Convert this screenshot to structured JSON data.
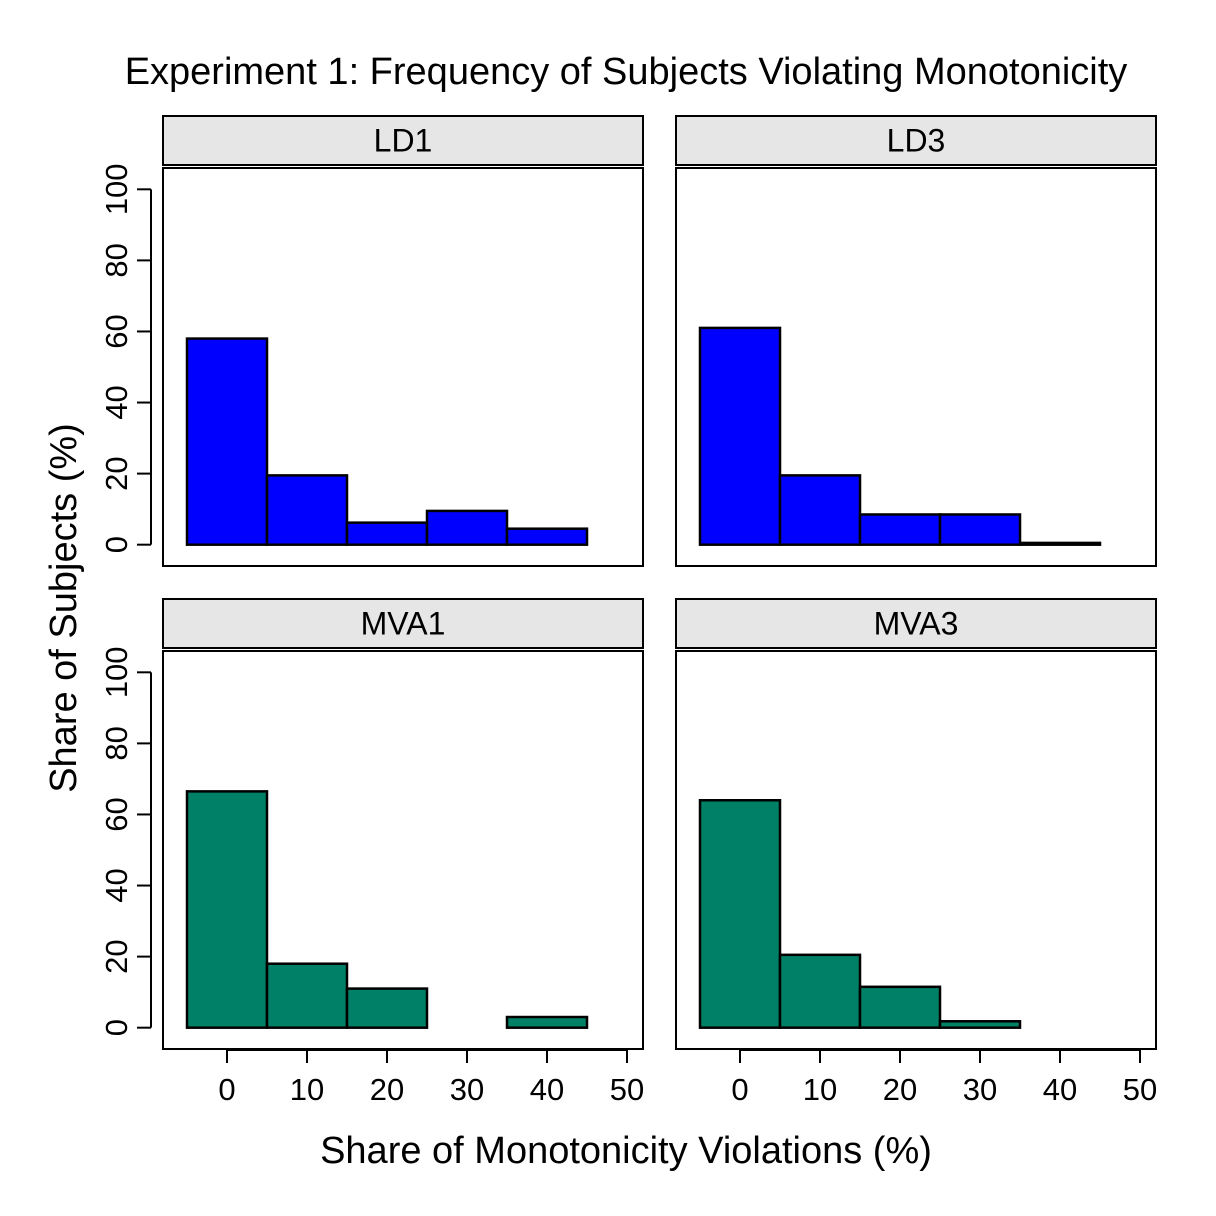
{
  "chart_data": {
    "type": "bar",
    "title": "Experiment 1: Frequency of Subjects Violating Monotonicity",
    "xlabel": "Share of Monotonicity Violations (%)",
    "ylabel": "Share of Subjects (%)",
    "xlim": [
      -8,
      52
    ],
    "ylim": [
      -6,
      106
    ],
    "xticks": [
      0,
      10,
      20,
      30,
      40,
      50
    ],
    "yticks": [
      0,
      20,
      40,
      60,
      80,
      100
    ],
    "bin_width": 10,
    "bin_centers": [
      0,
      10,
      20,
      30,
      40
    ],
    "colors": {
      "LD": "#0000ff",
      "MVA": "#008066",
      "strip": "#e6e6e6",
      "edge": "#000000"
    },
    "panels": [
      {
        "name": "LD1",
        "group": "LD",
        "values": [
          58,
          19.5,
          6.2,
          9.5,
          4.5
        ]
      },
      {
        "name": "LD3",
        "group": "LD",
        "values": [
          61,
          19.5,
          8.5,
          8.5,
          0.5
        ]
      },
      {
        "name": "MVA1",
        "group": "MVA",
        "values": [
          66.5,
          18,
          11,
          0,
          3
        ]
      },
      {
        "name": "MVA3",
        "group": "MVA",
        "values": [
          64,
          20.5,
          11.5,
          1.8,
          0
        ]
      }
    ]
  }
}
